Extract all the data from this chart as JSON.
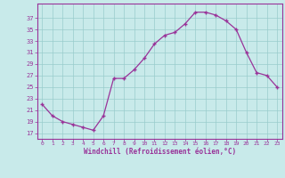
{
  "x": [
    0,
    1,
    2,
    3,
    4,
    5,
    6,
    7,
    8,
    9,
    10,
    11,
    12,
    13,
    14,
    15,
    16,
    17,
    18,
    19,
    20,
    21,
    22,
    23
  ],
  "y": [
    22,
    20,
    19,
    18.5,
    18,
    17.5,
    20,
    26.5,
    26.5,
    28,
    30,
    32.5,
    34,
    34.5,
    36,
    38,
    38,
    37.5,
    36.5,
    35,
    31,
    27.5,
    27,
    25
  ],
  "line_color": "#993399",
  "marker": "+",
  "bg_color": "#c8eaea",
  "grid_color": "#99cccc",
  "xlabel": "Windchill (Refroidissement éolien,°C)",
  "xlabel_color": "#993399",
  "tick_color": "#993399",
  "ylabel_ticks": [
    17,
    19,
    21,
    23,
    25,
    27,
    29,
    31,
    33,
    35,
    37
  ],
  "ylim": [
    16.0,
    39.5
  ],
  "xlim": [
    -0.5,
    23.5
  ],
  "figsize": [
    3.2,
    2.0
  ],
  "dpi": 100
}
